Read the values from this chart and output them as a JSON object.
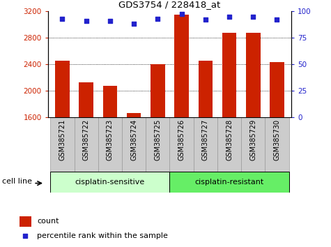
{
  "title": "GDS3754 / 228418_at",
  "samples": [
    "GSM385721",
    "GSM385722",
    "GSM385723",
    "GSM385724",
    "GSM385725",
    "GSM385726",
    "GSM385727",
    "GSM385728",
    "GSM385729",
    "GSM385730"
  ],
  "counts": [
    2450,
    2130,
    2070,
    1660,
    2400,
    3150,
    2450,
    2870,
    2870,
    2430
  ],
  "percentiles": [
    93,
    91,
    91,
    88,
    93,
    97,
    92,
    95,
    95,
    92
  ],
  "bar_color": "#cc2200",
  "dot_color": "#2222cc",
  "ylim_left": [
    1600,
    3200
  ],
  "ylim_right": [
    0,
    100
  ],
  "yticks_left": [
    1600,
    2000,
    2400,
    2800,
    3200
  ],
  "yticks_right": [
    0,
    25,
    50,
    75,
    100
  ],
  "grid_yticks": [
    2000,
    2400,
    2800
  ],
  "left_tick_color": "#cc2200",
  "right_tick_color": "#2222cc",
  "group1_label": "cisplatin-sensitive",
  "group2_label": "cisplatin-resistant",
  "group1_indices": [
    0,
    1,
    2,
    3,
    4
  ],
  "group2_indices": [
    5,
    6,
    7,
    8,
    9
  ],
  "group1_color": "#ccffcc",
  "group2_color": "#66ee66",
  "cell_line_label": "cell line",
  "legend_count_label": "count",
  "legend_pct_label": "percentile rank within the sample",
  "bar_width": 0.6,
  "bg_color": "#ffffff",
  "xticklabel_bg": "#cccccc",
  "xticklabel_border": "#999999"
}
